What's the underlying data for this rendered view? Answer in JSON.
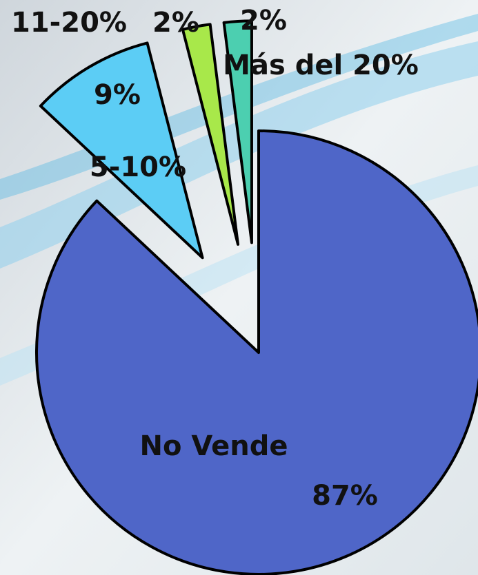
{
  "chart_data": {
    "type": "pie",
    "categories": [
      "No Vende",
      "5-10%",
      "11-20%",
      "Más del 20%"
    ],
    "values": [
      87,
      9,
      2,
      2
    ],
    "value_labels": [
      "87%",
      "9%",
      "2%",
      "2%"
    ],
    "colors": [
      "#4f66c8",
      "#5ccdf5",
      "#a8e84a",
      "#4ccfb0"
    ]
  }
}
